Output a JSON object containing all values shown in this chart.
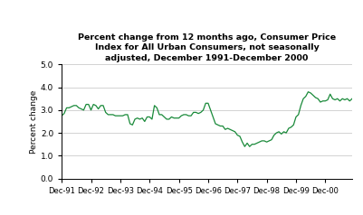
{
  "title": "Percent change from 12 months ago, Consumer Price\nIndex for All Urban Consumers, not seasonally\nadjusted, December 1991-December 2000",
  "ylabel": "Percent change",
  "line_color": "#1a8a3a",
  "background_color": "#ffffff",
  "ylim": [
    0.0,
    5.0
  ],
  "yticks": [
    0.0,
    1.0,
    2.0,
    3.0,
    4.0,
    5.0
  ],
  "xtick_labels": [
    "Dec-91",
    "Dec-92",
    "Dec-93",
    "Dec-94",
    "Dec-95",
    "Dec-96",
    "Dec-97",
    "Dec-98",
    "Dec-99",
    "Dec-00"
  ],
  "values": [
    2.75,
    2.85,
    3.1,
    3.1,
    3.15,
    3.2,
    3.2,
    3.1,
    3.05,
    3.0,
    3.25,
    3.25,
    3.0,
    3.25,
    3.2,
    3.05,
    3.2,
    3.2,
    2.9,
    2.8,
    2.8,
    2.8,
    2.75,
    2.75,
    2.75,
    2.75,
    2.8,
    2.8,
    2.4,
    2.35,
    2.6,
    2.65,
    2.6,
    2.65,
    2.5,
    2.7,
    2.7,
    2.6,
    3.2,
    3.1,
    2.8,
    2.8,
    2.7,
    2.6,
    2.6,
    2.7,
    2.65,
    2.65,
    2.65,
    2.75,
    2.8,
    2.8,
    2.75,
    2.75,
    2.9,
    2.9,
    2.85,
    2.9,
    3.0,
    3.3,
    3.3,
    3.0,
    2.7,
    2.4,
    2.35,
    2.3,
    2.3,
    2.15,
    2.2,
    2.15,
    2.1,
    2.05,
    1.9,
    1.85,
    1.6,
    1.4,
    1.55,
    1.4,
    1.5,
    1.5,
    1.55,
    1.6,
    1.65,
    1.65,
    1.6,
    1.65,
    1.7,
    1.9,
    2.0,
    2.05,
    1.95,
    2.05,
    2.0,
    2.2,
    2.25,
    2.35,
    2.7,
    2.8,
    3.2,
    3.5,
    3.6,
    3.8,
    3.75,
    3.65,
    3.55,
    3.5,
    3.35,
    3.4,
    3.4,
    3.45,
    3.7,
    3.5,
    3.45,
    3.5,
    3.4,
    3.5,
    3.45,
    3.5,
    3.4,
    3.5
  ]
}
